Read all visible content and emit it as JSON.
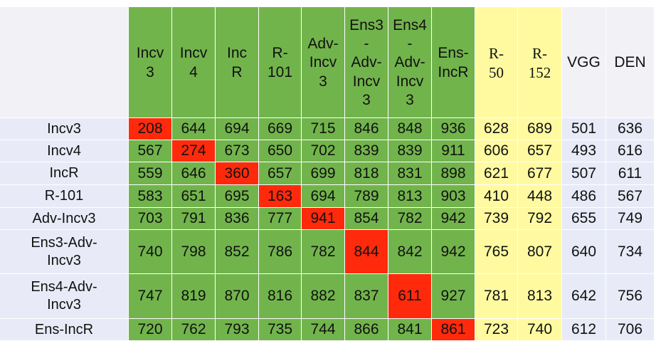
{
  "table": {
    "col_headers": [
      "Incv\n3",
      "Incv\n4",
      "Inc\nR",
      "R-\n101",
      "Adv-\nIncv\n3",
      "Ens3\n-\nAdv-\nIncv\n3",
      "Ens4\n-\nAdv-\nIncv\n3",
      "Ens-\nIncR",
      "R-\n50",
      "R-\n152",
      "VGG",
      "DEN"
    ],
    "row_labels": [
      "Incv3",
      "Incv4",
      "IncR",
      "R-101",
      "Adv-Incv3",
      "Ens3-Adv-\nIncv3",
      "Ens4-Adv-\nIncv3",
      "Ens-IncR"
    ],
    "rows": [
      [
        "208",
        "644",
        "694",
        "669",
        "715",
        "846",
        "848",
        "936",
        "628",
        "689",
        "501",
        "636"
      ],
      [
        "567",
        "274",
        "673",
        "650",
        "702",
        "839",
        "839",
        "911",
        "606",
        "657",
        "493",
        "616"
      ],
      [
        "559",
        "646",
        "360",
        "657",
        "699",
        "818",
        "831",
        "898",
        "621",
        "677",
        "507",
        "611"
      ],
      [
        "583",
        "651",
        "695",
        "163",
        "694",
        "789",
        "813",
        "903",
        "410",
        "448",
        "486",
        "567"
      ],
      [
        "703",
        "791",
        "836",
        "777",
        "941",
        "854",
        "782",
        "942",
        "739",
        "792",
        "655",
        "749"
      ],
      [
        "740",
        "798",
        "852",
        "786",
        "782",
        "844",
        "842",
        "942",
        "765",
        "807",
        "640",
        "734"
      ],
      [
        "747",
        "819",
        "870",
        "816",
        "882",
        "837",
        "611",
        "927",
        "781",
        "813",
        "642",
        "756"
      ],
      [
        "720",
        "762",
        "793",
        "735",
        "744",
        "866",
        "841",
        "861",
        "723",
        "740",
        "612",
        "706"
      ]
    ],
    "colors": {
      "green": "#72b44c",
      "red": "#ff2a0c",
      "yellow": "#fffaa0",
      "lavender": "#d4d8f0",
      "light_lavender": "#e8ebf7",
      "header_gray": "#f1f1f6",
      "blank": "#ffffff"
    },
    "column_groups": [
      "green",
      "green",
      "green",
      "green",
      "green",
      "green",
      "green",
      "green",
      "yellow",
      "yellow",
      "lavender",
      "lavender"
    ]
  }
}
